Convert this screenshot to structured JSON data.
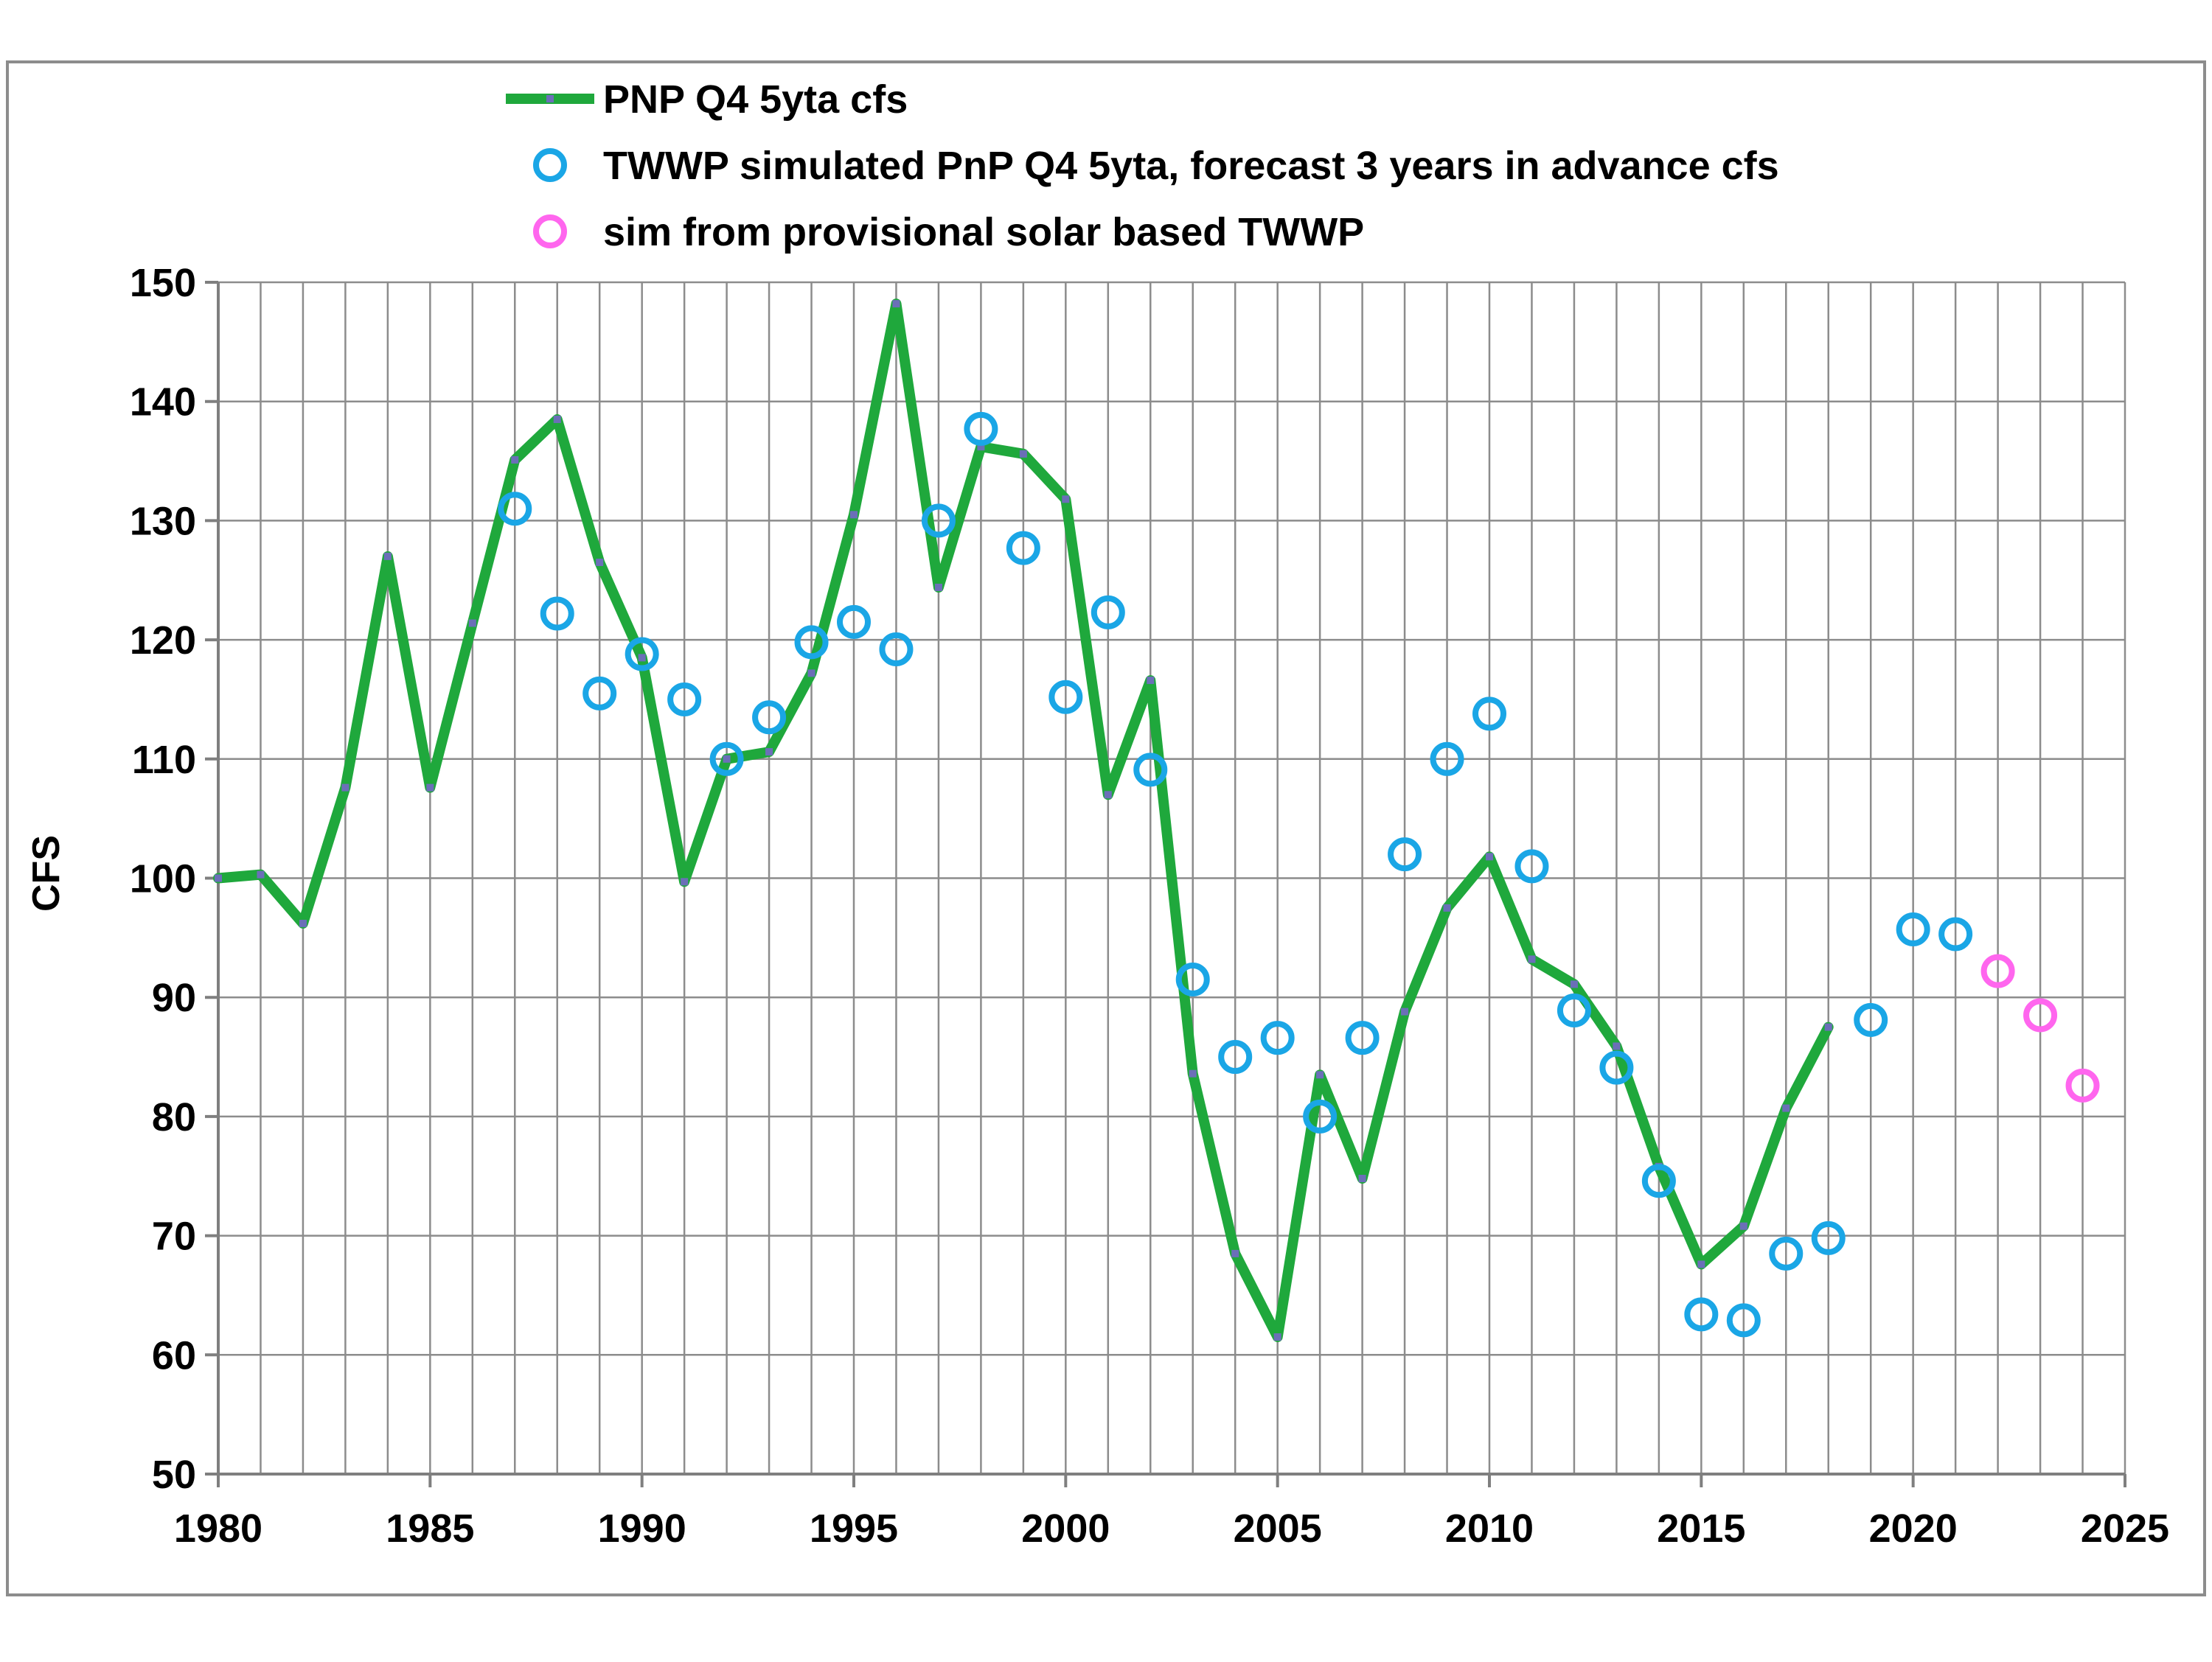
{
  "chart_data": {
    "type": "line",
    "title": "",
    "xlabel": "",
    "ylabel": "CFS",
    "xlim": [
      1980,
      2025
    ],
    "ylim": [
      50,
      150
    ],
    "xticks": [
      1980,
      1985,
      1990,
      1995,
      2000,
      2005,
      2010,
      2015,
      2020,
      2025
    ],
    "yticks": [
      50,
      60,
      70,
      80,
      90,
      100,
      110,
      120,
      130,
      140,
      150
    ],
    "grid": true,
    "legend_position": "top",
    "series": [
      {
        "name": "PNP Q4 5yta cfs",
        "kind": "line",
        "color": "#1fa83c",
        "marker_color": "#6b6fb8",
        "x": [
          1980,
          1981,
          1982,
          1983,
          1984,
          1985,
          1986,
          1987,
          1988,
          1989,
          1990,
          1991,
          1992,
          1993,
          1994,
          1995,
          1996,
          1997,
          1998,
          1999,
          2000,
          2001,
          2002,
          2003,
          2004,
          2005,
          2006,
          2007,
          2008,
          2009,
          2010,
          2011,
          2012,
          2013,
          2014,
          2015,
          2016,
          2017,
          2018
        ],
        "values": [
          100,
          100.3,
          96.2,
          107.6,
          127,
          107.6,
          121.4,
          135.1,
          138.5,
          126.5,
          118.5,
          99.7,
          110,
          110.6,
          117.2,
          130.5,
          148.2,
          124.4,
          136.2,
          135.6,
          131.8,
          107,
          116.6,
          83.6,
          68.5,
          61.5,
          83.5,
          74.8,
          88.8,
          97.5,
          101.8,
          93.2,
          91.1,
          85.9,
          75.8,
          67.6,
          70.8,
          80.7,
          87.5
        ]
      },
      {
        "name": "TWWP simulated PnP Q4 5yta, forecast 3 years in advance cfs",
        "kind": "scatter",
        "color": "#1aa6e6",
        "x": [
          1987,
          1988,
          1989,
          1990,
          1991,
          1992,
          1993,
          1994,
          1995,
          1996,
          1997,
          1998,
          1999,
          2000,
          2001,
          2002,
          2003,
          2004,
          2005,
          2006,
          2007,
          2008,
          2009,
          2010,
          2011,
          2012,
          2013,
          2014,
          2015,
          2016,
          2017,
          2018,
          2019,
          2020,
          2021
        ],
        "values": [
          131,
          122.2,
          115.5,
          118.8,
          115,
          110,
          113.5,
          119.8,
          121.5,
          119.2,
          130,
          137.7,
          127.7,
          115.2,
          122.3,
          109.1,
          91.5,
          85,
          86.6,
          80,
          86.6,
          102,
          110,
          113.8,
          101,
          88.9,
          84.1,
          74.6,
          63.4,
          62.9,
          68.5,
          69.8,
          88.1,
          95.7,
          95.3
        ]
      },
      {
        "name": "sim from provisional solar based TWWP",
        "kind": "scatter",
        "color": "#ff66ee",
        "x": [
          2022,
          2023,
          2024
        ],
        "values": [
          92.2,
          88.5,
          82.6
        ]
      }
    ]
  }
}
